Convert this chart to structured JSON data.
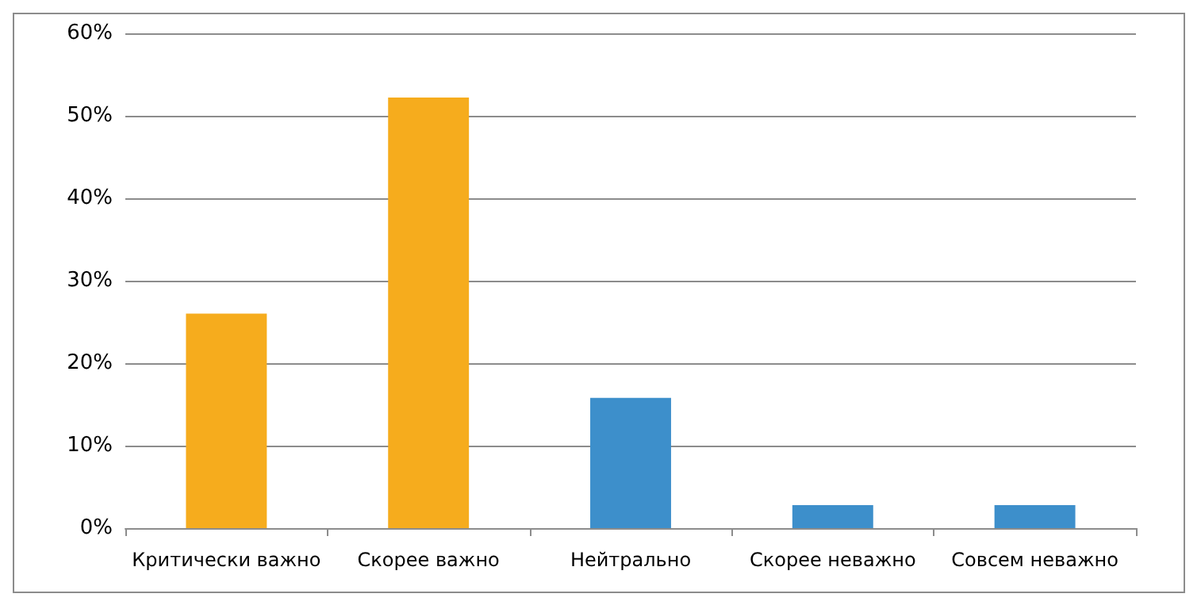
{
  "chart_data": {
    "type": "bar",
    "categories": [
      "Критически важно",
      "Скорее важно",
      "Нейтрально",
      "Скорее неважно",
      "Совсем неважно"
    ],
    "values": [
      26,
      52.2,
      15.8,
      2.8,
      2.8
    ],
    "colors": [
      "#f6ac1d",
      "#f6ac1d",
      "#3d8fcb",
      "#3d8fcb",
      "#3d8fcb"
    ],
    "ylim": [
      0,
      60
    ],
    "yticks": [
      {
        "value": 0,
        "label": "0%"
      },
      {
        "value": 10,
        "label": "10%"
      },
      {
        "value": 20,
        "label": "20%"
      },
      {
        "value": 30,
        "label": "30%"
      },
      {
        "value": 40,
        "label": "40%"
      },
      {
        "value": 50,
        "label": "50%"
      },
      {
        "value": 60,
        "label": "60%"
      }
    ],
    "grid": "y"
  }
}
